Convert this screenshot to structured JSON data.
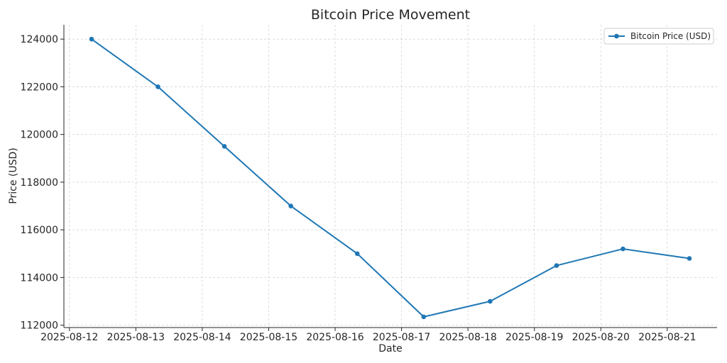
{
  "chart_data": {
    "type": "line",
    "title": "Bitcoin Price Movement",
    "xlabel": "Date",
    "ylabel": "Price (USD)",
    "x_ticks": [
      "2025-08-12",
      "2025-08-13",
      "2025-08-14",
      "2025-08-15",
      "2025-08-16",
      "2025-08-17",
      "2025-08-18",
      "2025-08-19",
      "2025-08-20",
      "2025-08-21"
    ],
    "y_ticks": [
      112000,
      114000,
      116000,
      118000,
      120000,
      122000,
      124000
    ],
    "series": [
      {
        "name": "Bitcoin Price (USD)",
        "color": "#1f77b4",
        "x": [
          "2025-08-12 08:00",
          "2025-08-13 08:00",
          "2025-08-14 08:00",
          "2025-08-15 08:00",
          "2025-08-16 08:00",
          "2025-08-17 08:00",
          "2025-08-18 08:00",
          "2025-08-19 08:00",
          "2025-08-20 08:00",
          "2025-08-21 08:00"
        ],
        "y": [
          124000,
          122000,
          119500,
          117000,
          115000,
          112350,
          113000,
          114500,
          115200,
          114800
        ]
      }
    ],
    "xlim": [
      "2025-08-11 22:00",
      "2025-08-21 18:00"
    ],
    "ylim": [
      111900,
      124600
    ],
    "grid": true,
    "legend_position": "top-right",
    "line_style": "solid",
    "marker": "circle"
  }
}
